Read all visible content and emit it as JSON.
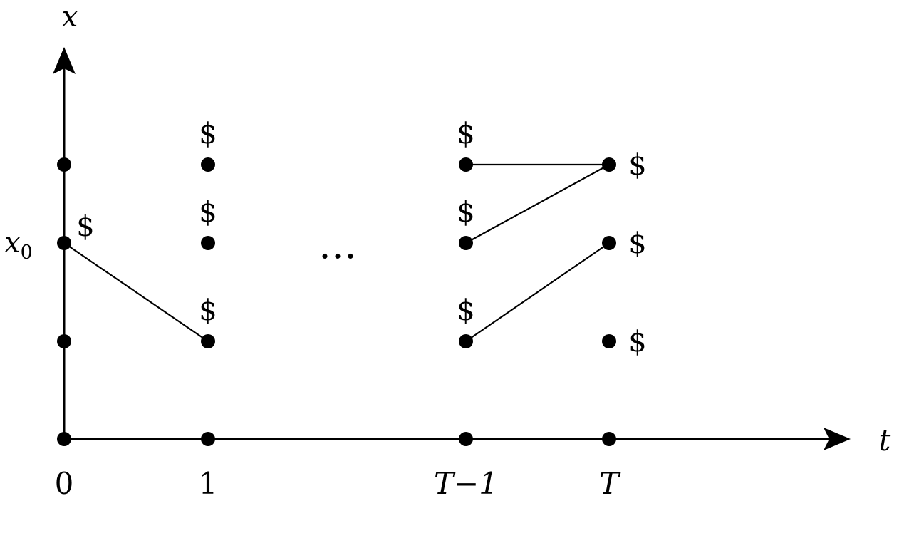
{
  "axes": {
    "x_axis_label": "t",
    "y_axis_label": "x",
    "y_tick_label": "x",
    "y_tick_subscript": "0"
  },
  "time_labels": [
    "0",
    "1",
    "T−1",
    "T"
  ],
  "ellipsis": "…",
  "reward_symbol": "$",
  "nodes": [
    {
      "id": "t0-axis",
      "col": 0,
      "level": 0,
      "reward": false
    },
    {
      "id": "t0-low",
      "col": 0,
      "level": 1,
      "reward": false
    },
    {
      "id": "t0-mid",
      "col": 0,
      "level": 2,
      "reward": true
    },
    {
      "id": "t0-high",
      "col": 0,
      "level": 3,
      "reward": false
    },
    {
      "id": "t1-axis",
      "col": 1,
      "level": 0,
      "reward": false
    },
    {
      "id": "t1-low",
      "col": 1,
      "level": 1,
      "reward": true
    },
    {
      "id": "t1-mid",
      "col": 1,
      "level": 2,
      "reward": true
    },
    {
      "id": "t1-high",
      "col": 1,
      "level": 3,
      "reward": true
    },
    {
      "id": "tm1-axis",
      "col": 2,
      "level": 0,
      "reward": false
    },
    {
      "id": "tm1-low",
      "col": 2,
      "level": 1,
      "reward": true
    },
    {
      "id": "tm1-mid",
      "col": 2,
      "level": 2,
      "reward": true
    },
    {
      "id": "tm1-high",
      "col": 2,
      "level": 3,
      "reward": true
    },
    {
      "id": "T-axis",
      "col": 3,
      "level": 0,
      "reward": false
    },
    {
      "id": "T-low",
      "col": 3,
      "level": 1,
      "reward": true
    },
    {
      "id": "T-mid",
      "col": 3,
      "level": 2,
      "reward": true
    },
    {
      "id": "T-high",
      "col": 3,
      "level": 3,
      "reward": true
    }
  ],
  "edges": [
    {
      "from": "t0-mid",
      "to": "t1-low"
    },
    {
      "from": "tm1-high",
      "to": "T-high"
    },
    {
      "from": "tm1-mid",
      "to": "T-high"
    },
    {
      "from": "tm1-low",
      "to": "T-mid"
    }
  ]
}
